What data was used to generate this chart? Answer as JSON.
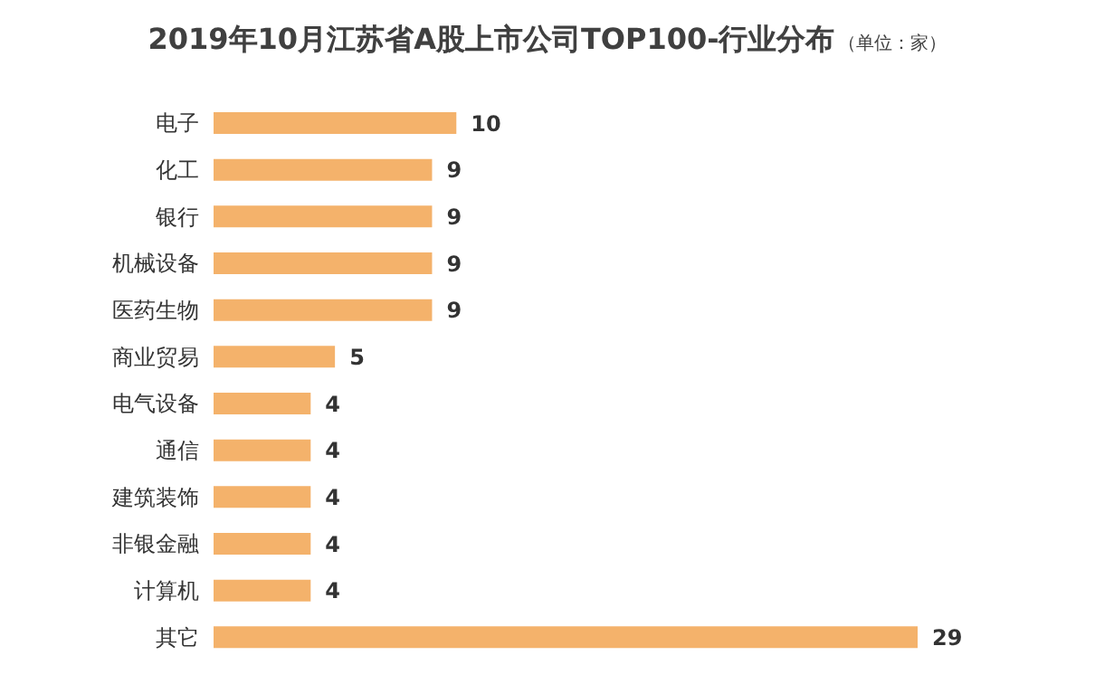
{
  "chart_data": {
    "type": "bar",
    "orientation": "horizontal",
    "title": "2019年10月江苏省A股上市公司TOP100-行业分布",
    "subtitle": "（单位：家）",
    "categories": [
      "电子",
      "化工",
      "银行",
      "机械设备",
      "医药生物",
      "商业贸易",
      "电气设备",
      "通信",
      "建筑装饰",
      "非银金融",
      "计算机",
      "其它"
    ],
    "values": [
      10,
      9,
      9,
      9,
      9,
      5,
      4,
      4,
      4,
      4,
      4,
      29
    ],
    "color": "#f4b26b",
    "data_labels": true
  }
}
